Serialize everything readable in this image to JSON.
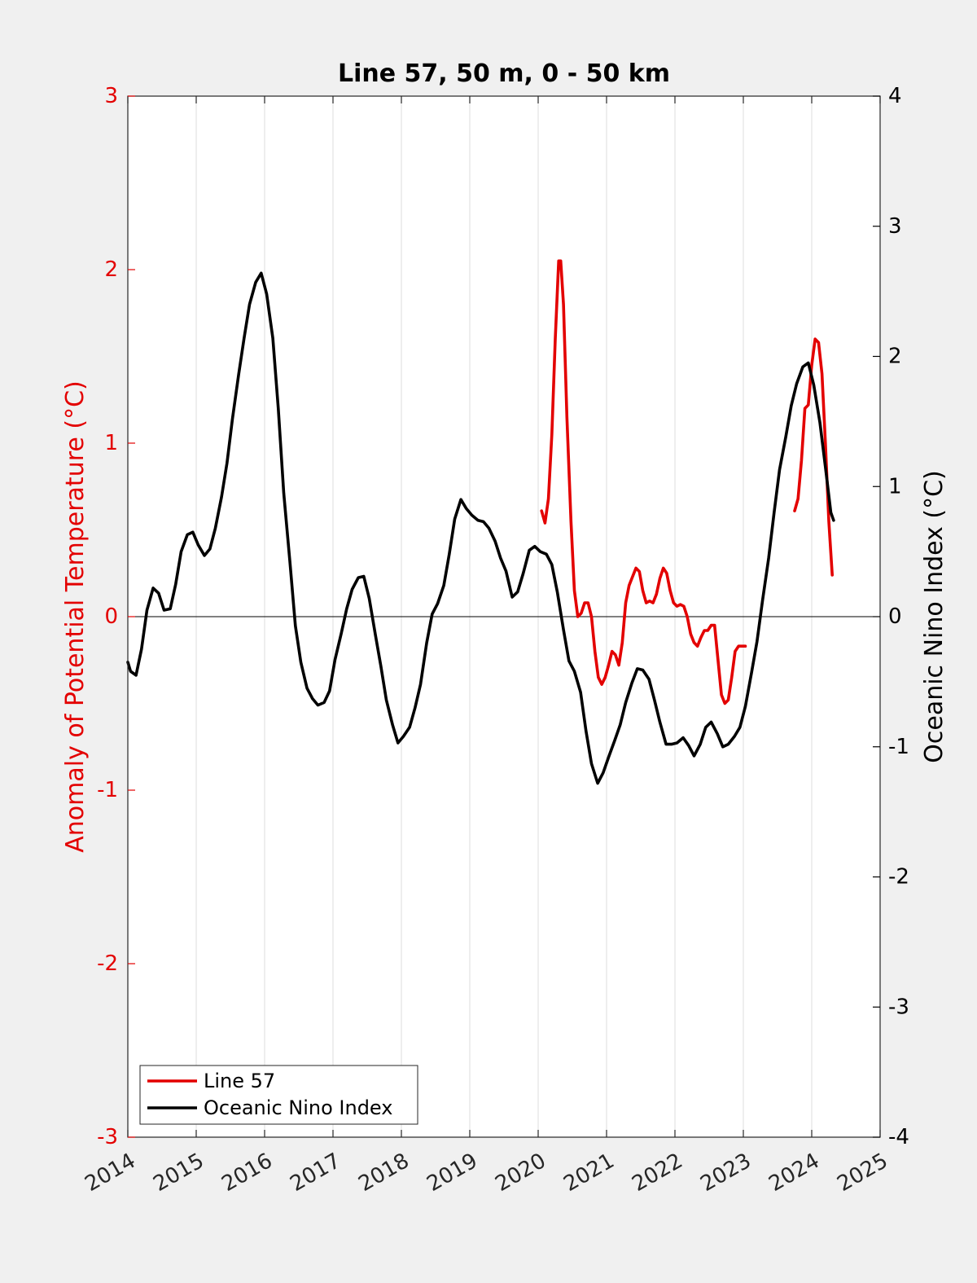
{
  "chart_data": {
    "type": "line",
    "title": "Line 57, 50 m, 0 - 50 km",
    "xlabel": "",
    "ylabel_left": "Anomaly of Potential Temperature (°C)",
    "ylabel_right": "Oceanic Nino Index (°C)",
    "xlim": [
      2014,
      2025
    ],
    "ylim_left": [
      -3,
      3
    ],
    "ylim_right": [
      -4,
      4
    ],
    "x_ticks": [
      "2014",
      "2015",
      "2016",
      "2017",
      "2018",
      "2019",
      "2020",
      "2021",
      "2022",
      "2023",
      "2024",
      "2025"
    ],
    "y_ticks_left": [
      "3",
      "2",
      "1",
      "0",
      "-1",
      "-2",
      "-3"
    ],
    "y_ticks_right": [
      "4",
      "3",
      "2",
      "1",
      "0",
      "-1",
      "-2",
      "-3",
      "-4"
    ],
    "grid": "vertical",
    "zero_line": true,
    "legend_position": "bottom-left",
    "colors": {
      "left_axis": "#e30000",
      "right_axis": "#000000",
      "background": "#f0f0f0",
      "plot_area": "#ffffff"
    },
    "series": [
      {
        "name": "Line 57",
        "axis": "left",
        "color": "#e30000",
        "segments": [
          {
            "x": [
              2020.05,
              2020.1,
              2020.15,
              2020.2,
              2020.25,
              2020.3,
              2020.33,
              2020.37,
              2020.42,
              2020.48,
              2020.53,
              2020.58,
              2020.63,
              2020.68,
              2020.73,
              2020.78,
              2020.83,
              2020.88,
              2020.93,
              2020.98,
              2021.03,
              2021.08,
              2021.13,
              2021.18,
              2021.23,
              2021.28,
              2021.33,
              2021.38,
              2021.43,
              2021.48,
              2021.53,
              2021.58,
              2021.63,
              2021.68,
              2021.73,
              2021.78,
              2021.83,
              2021.88,
              2021.93,
              2021.98,
              2022.03,
              2022.08,
              2022.13,
              2022.18,
              2022.23,
              2022.28,
              2022.33,
              2022.38,
              2022.43,
              2022.48,
              2022.53,
              2022.58,
              2022.63,
              2022.68,
              2022.73,
              2022.78,
              2022.83,
              2022.88,
              2022.93,
              2022.98,
              2023.03
            ],
            "y": [
              0.61,
              0.54,
              0.68,
              1.05,
              1.6,
              2.05,
              2.05,
              1.8,
              1.15,
              0.55,
              0.15,
              0.0,
              0.02,
              0.08,
              0.08,
              0.0,
              -0.2,
              -0.35,
              -0.39,
              -0.35,
              -0.28,
              -0.2,
              -0.22,
              -0.28,
              -0.15,
              0.08,
              0.18,
              0.23,
              0.28,
              0.26,
              0.15,
              0.08,
              0.09,
              0.08,
              0.13,
              0.22,
              0.28,
              0.25,
              0.15,
              0.08,
              0.06,
              0.07,
              0.06,
              0.0,
              -0.1,
              -0.15,
              -0.17,
              -0.12,
              -0.08,
              -0.08,
              -0.05,
              -0.05,
              -0.25,
              -0.45,
              -0.5,
              -0.48,
              -0.35,
              -0.2,
              -0.17,
              -0.17,
              -0.17
            ]
          },
          {
            "x": [
              2023.75,
              2023.8,
              2023.85,
              2023.9,
              2023.95,
              2024.0,
              2024.05,
              2024.1,
              2024.15,
              2024.2,
              2024.25,
              2024.3
            ],
            "y": [
              0.61,
              0.68,
              0.9,
              1.2,
              1.22,
              1.45,
              1.6,
              1.58,
              1.4,
              1.0,
              0.55,
              0.24
            ]
          }
        ]
      },
      {
        "name": "Oceanic Nino Index",
        "axis": "right",
        "color": "#000000",
        "segments": [
          {
            "x": [
              2014.0,
              2014.04,
              2014.12,
              2014.2,
              2014.28,
              2014.37,
              2014.45,
              2014.53,
              2014.62,
              2014.7,
              2014.78,
              2014.87,
              2014.95,
              2015.03,
              2015.12,
              2015.2,
              2015.28,
              2015.37,
              2015.45,
              2015.53,
              2015.62,
              2015.7,
              2015.78,
              2015.87,
              2015.95,
              2016.03,
              2016.12,
              2016.2,
              2016.28,
              2016.37,
              2016.45,
              2016.53,
              2016.62,
              2016.7,
              2016.78,
              2016.87,
              2016.95,
              2017.03,
              2017.12,
              2017.2,
              2017.28,
              2017.37,
              2017.45,
              2017.53,
              2017.62,
              2017.7,
              2017.78,
              2017.87,
              2017.95,
              2018.03,
              2018.12,
              2018.2,
              2018.28,
              2018.37,
              2018.45,
              2018.53,
              2018.62,
              2018.7,
              2018.78,
              2018.87,
              2018.95,
              2019.03,
              2019.12,
              2019.2,
              2019.28,
              2019.37,
              2019.45,
              2019.53,
              2019.62,
              2019.7,
              2019.78,
              2019.87,
              2019.95,
              2020.03,
              2020.12,
              2020.2,
              2020.28,
              2020.37,
              2020.45,
              2020.53,
              2020.62,
              2020.7,
              2020.78,
              2020.87,
              2020.95,
              2021.03,
              2021.12,
              2021.2,
              2021.28,
              2021.37,
              2021.45,
              2021.53,
              2021.62,
              2021.7,
              2021.78,
              2021.87,
              2021.95,
              2022.03,
              2022.12,
              2022.2,
              2022.28,
              2022.37,
              2022.45,
              2022.53,
              2022.62,
              2022.7,
              2022.78,
              2022.87,
              2022.95,
              2023.03,
              2023.12,
              2023.2,
              2023.28,
              2023.37,
              2023.45,
              2023.53,
              2023.62,
              2023.7,
              2023.78,
              2023.87,
              2023.95,
              2024.03,
              2024.12,
              2024.2,
              2024.28,
              2024.32
            ],
            "y": [
              -0.35,
              -0.42,
              -0.45,
              -0.25,
              0.05,
              0.22,
              0.18,
              0.05,
              0.06,
              0.25,
              0.5,
              0.63,
              0.65,
              0.55,
              0.47,
              0.52,
              0.68,
              0.92,
              1.18,
              1.52,
              1.86,
              2.14,
              2.4,
              2.57,
              2.64,
              2.48,
              2.14,
              1.6,
              0.95,
              0.42,
              -0.07,
              -0.35,
              -0.55,
              -0.63,
              -0.68,
              -0.66,
              -0.57,
              -0.33,
              -0.13,
              0.06,
              0.21,
              0.3,
              0.31,
              0.14,
              -0.14,
              -0.38,
              -0.64,
              -0.83,
              -0.97,
              -0.92,
              -0.85,
              -0.7,
              -0.52,
              -0.2,
              0.02,
              0.1,
              0.24,
              0.48,
              0.75,
              0.9,
              0.83,
              0.78,
              0.74,
              0.73,
              0.68,
              0.58,
              0.45,
              0.35,
              0.15,
              0.19,
              0.33,
              0.51,
              0.54,
              0.5,
              0.48,
              0.4,
              0.19,
              -0.1,
              -0.34,
              -0.42,
              -0.58,
              -0.88,
              -1.13,
              -1.28,
              -1.2,
              -1.08,
              -0.95,
              -0.83,
              -0.66,
              -0.51,
              -0.4,
              -0.41,
              -0.48,
              -0.64,
              -0.81,
              -0.98,
              -0.98,
              -0.97,
              -0.93,
              -0.99,
              -1.07,
              -0.98,
              -0.85,
              -0.81,
              -0.9,
              -1.0,
              -0.98,
              -0.92,
              -0.85,
              -0.69,
              -0.43,
              -0.19,
              0.12,
              0.45,
              0.8,
              1.13,
              1.38,
              1.62,
              1.79,
              1.92,
              1.95,
              1.78,
              1.49,
              1.15,
              0.8,
              0.74
            ]
          }
        ]
      }
    ]
  }
}
